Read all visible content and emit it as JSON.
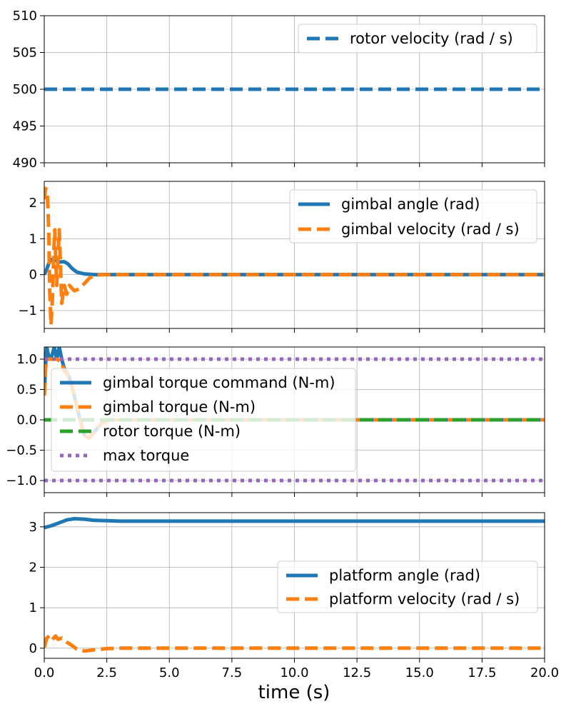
{
  "figure": {
    "xlabel": "time (s)",
    "x_ticks": [
      0,
      2.5,
      5,
      7.5,
      10,
      12.5,
      15,
      17.5,
      20
    ],
    "x_tick_labels": [
      "0.0",
      "2.5",
      "5.0",
      "7.5",
      "10.0",
      "12.5",
      "15.0",
      "17.5",
      "20.0"
    ],
    "grid": true
  },
  "chart_data": [
    {
      "type": "line",
      "xlim": [
        0,
        20
      ],
      "ylim": [
        490,
        510
      ],
      "y_ticks": [
        490,
        495,
        500,
        505,
        510
      ],
      "y_tick_labels": [
        "490",
        "495",
        "500",
        "505",
        "510"
      ],
      "legend_position": "top-right",
      "series": [
        {
          "name": "rotor velocity (rad / s)",
          "color": "#1f77b4",
          "style": "dashed",
          "points": [
            [
              0,
              500
            ],
            [
              20,
              500
            ]
          ]
        }
      ]
    },
    {
      "type": "line",
      "xlim": [
        0,
        20
      ],
      "ylim": [
        -1.5,
        2.6
      ],
      "y_ticks": [
        -1,
        0,
        1,
        2
      ],
      "y_tick_labels": [
        "−1",
        "0",
        "1",
        "2"
      ],
      "legend_position": "top-right",
      "series": [
        {
          "name": "gimbal angle (rad)",
          "color": "#1f77b4",
          "style": "solid",
          "points": [
            [
              0,
              0
            ],
            [
              0.1,
              0.15
            ],
            [
              0.2,
              0.35
            ],
            [
              0.3,
              0.42
            ],
            [
              0.45,
              0.4
            ],
            [
              0.6,
              0.35
            ],
            [
              0.8,
              0.36
            ],
            [
              0.95,
              0.3
            ],
            [
              1.1,
              0.18
            ],
            [
              1.3,
              0.07
            ],
            [
              1.6,
              0.02
            ],
            [
              2,
              0
            ],
            [
              20,
              0
            ]
          ]
        },
        {
          "name": "gimbal velocity (rad / s)",
          "color": "#ff7f0e",
          "style": "dashed",
          "points": [
            [
              0,
              2.1
            ],
            [
              0.05,
              2.4
            ],
            [
              0.12,
              2.35
            ],
            [
              0.18,
              1.2
            ],
            [
              0.22,
              -0.5
            ],
            [
              0.27,
              -1.4
            ],
            [
              0.33,
              -0.6
            ],
            [
              0.38,
              0.6
            ],
            [
              0.42,
              1.25
            ],
            [
              0.46,
              0.4
            ],
            [
              0.5,
              -0.3
            ],
            [
              0.55,
              0.5
            ],
            [
              0.6,
              1.25
            ],
            [
              0.65,
              0.2
            ],
            [
              0.7,
              -0.8
            ],
            [
              0.8,
              -0.3
            ],
            [
              0.9,
              -0.55
            ],
            [
              1.0,
              -0.3
            ],
            [
              1.2,
              -0.45
            ],
            [
              1.4,
              -0.4
            ],
            [
              1.6,
              -0.25
            ],
            [
              1.8,
              -0.1
            ],
            [
              2.0,
              -0.02
            ],
            [
              2.3,
              0
            ],
            [
              20,
              0
            ]
          ]
        }
      ]
    },
    {
      "type": "line",
      "xlim": [
        0,
        20
      ],
      "ylim": [
        -1.2,
        1.2
      ],
      "y_ticks": [
        -1.0,
        -0.5,
        0.0,
        0.5,
        1.0
      ],
      "y_tick_labels": [
        "−1.0",
        "−0.5",
        "0.0",
        "0.5",
        "1.0"
      ],
      "legend_position": "center-left",
      "series": [
        {
          "name": "gimbal torque command (N-m)",
          "color": "#1f77b4",
          "style": "solid",
          "points": [
            [
              0,
              0.4
            ],
            [
              0.05,
              0.9
            ],
            [
              0.1,
              1.2
            ],
            [
              0.2,
              1.0
            ],
            [
              0.3,
              1.05
            ],
            [
              0.4,
              1.2
            ],
            [
              0.5,
              1.0
            ],
            [
              0.6,
              1.2
            ],
            [
              0.7,
              1.0
            ],
            [
              0.8,
              0.85
            ],
            [
              1.0,
              0.7
            ],
            [
              1.2,
              0.4
            ],
            [
              1.4,
              0.05
            ],
            [
              1.6,
              -0.25
            ],
            [
              1.8,
              -0.3
            ],
            [
              2.0,
              -0.2
            ],
            [
              2.3,
              -0.05
            ],
            [
              2.6,
              0
            ],
            [
              20,
              0
            ]
          ]
        },
        {
          "name": "gimbal torque (N-m)",
          "color": "#ff7f0e",
          "style": "dashed",
          "points": [
            [
              0,
              0.4
            ],
            [
              0.05,
              0.85
            ],
            [
              0.1,
              1.0
            ],
            [
              0.3,
              1.0
            ],
            [
              0.5,
              1.0
            ],
            [
              0.7,
              0.95
            ],
            [
              0.8,
              0.8
            ],
            [
              1.0,
              0.7
            ],
            [
              1.2,
              0.4
            ],
            [
              1.4,
              0.05
            ],
            [
              1.6,
              -0.25
            ],
            [
              1.8,
              -0.3
            ],
            [
              2.0,
              -0.2
            ],
            [
              2.3,
              -0.05
            ],
            [
              2.6,
              0
            ],
            [
              20,
              0
            ]
          ]
        },
        {
          "name": "rotor torque (N-m)",
          "color": "#2ca02c",
          "style": "dashed",
          "points": [
            [
              0,
              0
            ],
            [
              20,
              0
            ]
          ]
        },
        {
          "name": "max torque",
          "color": "#9467bd",
          "style": "dotted",
          "points": [
            [
              0,
              1
            ],
            [
              20,
              1
            ]
          ],
          "mirror_points": [
            [
              0,
              -1
            ],
            [
              20,
              -1
            ]
          ]
        }
      ]
    },
    {
      "type": "line",
      "xlim": [
        0,
        20
      ],
      "ylim": [
        -0.25,
        3.35
      ],
      "y_ticks": [
        0,
        1,
        2,
        3
      ],
      "y_tick_labels": [
        "0",
        "1",
        "2",
        "3"
      ],
      "legend_position": "center-right",
      "series": [
        {
          "name": "platform angle (rad)",
          "color": "#1f77b4",
          "style": "solid",
          "points": [
            [
              0,
              2.98
            ],
            [
              0.3,
              3.03
            ],
            [
              0.6,
              3.1
            ],
            [
              0.9,
              3.17
            ],
            [
              1.2,
              3.2
            ],
            [
              1.6,
              3.19
            ],
            [
              2.0,
              3.16
            ],
            [
              2.5,
              3.15
            ],
            [
              3,
              3.14
            ],
            [
              20,
              3.14
            ]
          ]
        },
        {
          "name": "platform velocity (rad / s)",
          "color": "#ff7f0e",
          "style": "dashed",
          "points": [
            [
              0,
              0.02
            ],
            [
              0.1,
              0.25
            ],
            [
              0.2,
              0.3
            ],
            [
              0.3,
              0.2
            ],
            [
              0.45,
              0.3
            ],
            [
              0.55,
              0.22
            ],
            [
              0.7,
              0.25
            ],
            [
              0.9,
              0.15
            ],
            [
              1.1,
              0.07
            ],
            [
              1.3,
              -0.02
            ],
            [
              1.6,
              -0.07
            ],
            [
              2.0,
              -0.04
            ],
            [
              2.5,
              -0.01
            ],
            [
              3,
              0
            ],
            [
              20,
              0
            ]
          ]
        }
      ]
    }
  ]
}
